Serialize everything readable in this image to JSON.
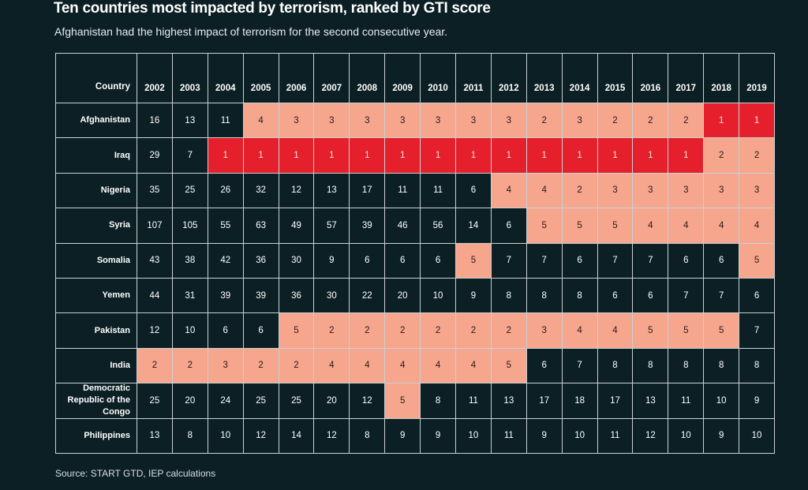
{
  "header": {
    "title": "Ten countries most impacted by terrorism, ranked by GTI score",
    "subtitle": "Afghanistan had the highest impact of terrorism for the second consecutive year."
  },
  "table": {
    "header": [
      "Country",
      "2002",
      "2003",
      "2004",
      "2005",
      "2006",
      "2007",
      "2008",
      "2009",
      "2010",
      "2011",
      "2012",
      "2013",
      "2014",
      "2015",
      "2016",
      "2017",
      "2018",
      "2019"
    ],
    "rows": [
      [
        "Afghanistan",
        16,
        13,
        11,
        4,
        3,
        3,
        3,
        3,
        3,
        3,
        3,
        2,
        3,
        2,
        2,
        2,
        1,
        1
      ],
      [
        "Iraq",
        29,
        7,
        1,
        1,
        1,
        1,
        1,
        1,
        1,
        1,
        1,
        1,
        1,
        1,
        1,
        1,
        2,
        2
      ],
      [
        "Nigeria",
        35,
        25,
        26,
        32,
        12,
        13,
        17,
        11,
        11,
        6,
        4,
        4,
        2,
        3,
        3,
        3,
        3,
        3
      ],
      [
        "Syria",
        107,
        105,
        55,
        63,
        49,
        57,
        39,
        46,
        56,
        14,
        6,
        5,
        5,
        5,
        4,
        4,
        4,
        4
      ],
      [
        "Somalia",
        43,
        38,
        42,
        36,
        30,
        9,
        6,
        6,
        6,
        5,
        7,
        7,
        6,
        7,
        7,
        6,
        6,
        5
      ],
      [
        "Yemen",
        44,
        31,
        39,
        39,
        36,
        30,
        22,
        20,
        10,
        9,
        8,
        8,
        8,
        6,
        6,
        7,
        7,
        6
      ],
      [
        "Pakistan",
        12,
        10,
        6,
        6,
        5,
        2,
        2,
        2,
        2,
        2,
        2,
        3,
        4,
        4,
        5,
        5,
        5,
        7
      ],
      [
        "India",
        2,
        2,
        3,
        2,
        2,
        4,
        4,
        4,
        4,
        4,
        5,
        6,
        7,
        8,
        8,
        8,
        8,
        8
      ],
      [
        "Democratic Republic of the Congo",
        25,
        20,
        24,
        25,
        25,
        20,
        12,
        5,
        8,
        11,
        13,
        17,
        18,
        17,
        13,
        11,
        10,
        9
      ],
      [
        "Philippines",
        13,
        8,
        10,
        12,
        14,
        12,
        8,
        9,
        9,
        10,
        11,
        9,
        10,
        11,
        12,
        10,
        9,
        10
      ]
    ]
  },
  "footer": {
    "source": "Source: START GTD, IEP calculations"
  }
}
